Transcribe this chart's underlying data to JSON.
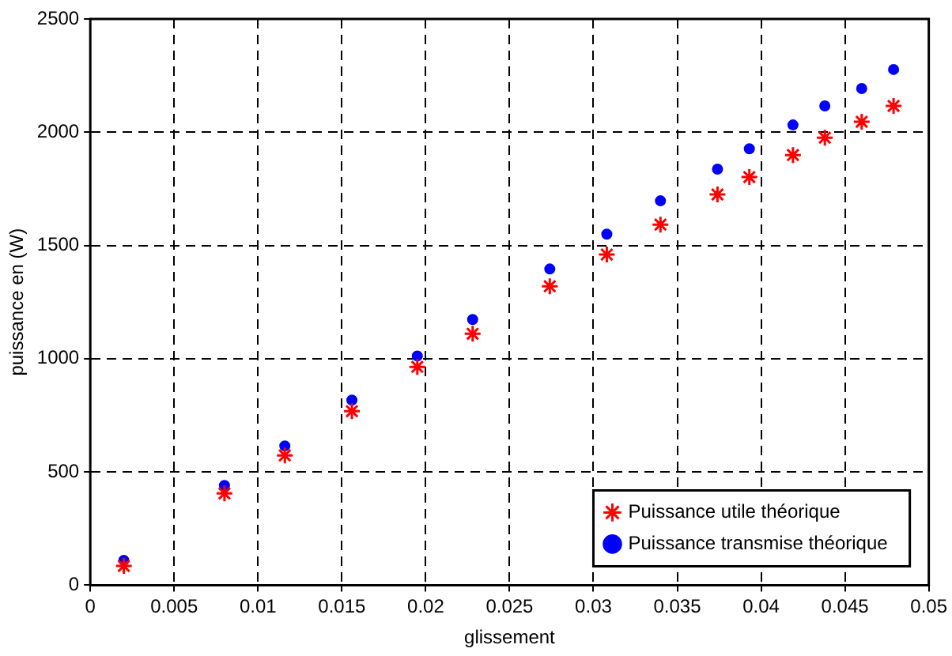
{
  "chart_data": {
    "type": "scatter",
    "xlabel": "glissement",
    "ylabel": "puissance en (W)",
    "x": [
      0.002,
      0.008,
      0.0116,
      0.0156,
      0.0195,
      0.0228,
      0.0274,
      0.0308,
      0.034,
      0.0374,
      0.0393,
      0.0419,
      0.0438,
      0.046,
      0.0479
    ],
    "series": [
      {
        "name": "Puissance utile théorique",
        "color": "#ff0000",
        "marker": "cross",
        "values": [
          85,
          405,
          573,
          768,
          964,
          1110,
          1320,
          1460,
          1592,
          1725,
          1802,
          1899,
          1976,
          2046,
          2116
        ]
      },
      {
        "name": "Puissance transmise théorique",
        "color": "#0000ff",
        "marker": "circle",
        "values": [
          110,
          440,
          615,
          817,
          1012,
          1173,
          1396,
          1550,
          1697,
          1837,
          1927,
          2032,
          2116,
          2193,
          2277
        ]
      }
    ],
    "xlim": [
      0,
      0.05
    ],
    "xticks": [
      0,
      0.005,
      0.01,
      0.015,
      0.02,
      0.025,
      0.03,
      0.035,
      0.04,
      0.045,
      0.05
    ],
    "ylim": [
      0,
      2500
    ],
    "yticks": [
      0,
      500,
      1000,
      1500,
      2000,
      2500
    ],
    "grid": true,
    "line_style": "dashed",
    "legend": "bottom right"
  }
}
